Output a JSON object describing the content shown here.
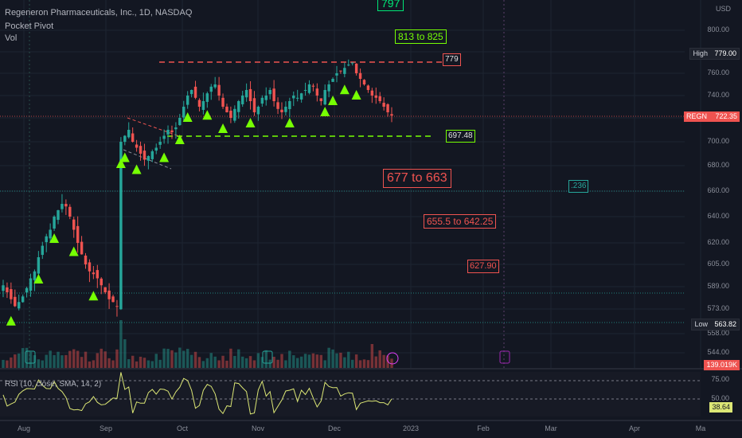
{
  "header": {
    "title": "Regeneron Pharmaceuticals, Inc., 1D, NASDAQ",
    "indicator1": "Pocket Pivot",
    "indicator2": "Vol"
  },
  "currency": "USD",
  "chart_data": {
    "type": "candlestick",
    "symbol": "REGN",
    "interval": "1D",
    "y_axis_ticks": [
      800,
      780,
      760,
      740,
      720,
      700,
      680,
      660,
      640,
      620,
      605,
      589,
      573,
      558,
      544
    ],
    "x_axis_labels": [
      "Aug",
      "Sep",
      "Oct",
      "Nov",
      "Dec",
      "2023",
      "Feb",
      "Mar",
      "Apr",
      "Ma"
    ],
    "last_price": "722.35",
    "high": {
      "label": "High",
      "value": "779.00"
    },
    "low": {
      "label": "Low",
      "value": "563.82"
    },
    "volume_label": "139.019K",
    "close_series": [
      590,
      585,
      580,
      575,
      578,
      582,
      588,
      595,
      600,
      610,
      618,
      625,
      630,
      640,
      645,
      650,
      648,
      640,
      630,
      620,
      612,
      605,
      600,
      598,
      595,
      590,
      585,
      580,
      578,
      575,
      700,
      705,
      710,
      700,
      695,
      690,
      685,
      688,
      692,
      695,
      700,
      705,
      710,
      708,
      712,
      720,
      730,
      740,
      745,
      738,
      730,
      735,
      742,
      748,
      750,
      740,
      730,
      725,
      720,
      728,
      735,
      740,
      745,
      735,
      725,
      730,
      738,
      740,
      745,
      735,
      728,
      725,
      730,
      735,
      740,
      738,
      742,
      745,
      750,
      748,
      740,
      735,
      745,
      750,
      755,
      760,
      762,
      765,
      768,
      770,
      760,
      755,
      750,
      745,
      740,
      738,
      735,
      730,
      725,
      722
    ],
    "annotations": [
      {
        "text": "797",
        "color": "#00e676",
        "border": "#00e676"
      },
      {
        "text": "813 to 825",
        "color": "#76ff03",
        "border": "#76ff03"
      },
      {
        "text": "779",
        "color": "#e0e0e0",
        "border": "#ef5350"
      },
      {
        "text": "697.48",
        "color": "#e0e0e0",
        "border": "#76ff03"
      },
      {
        "text": "677 to 663",
        "color": "#ef5350",
        "border": "#ef5350"
      },
      {
        "text": ".236",
        "color": "#26a69a",
        "border": "#26a69a"
      },
      {
        "text": "655.5 to 642.25",
        "color": "#ef5350",
        "border": "#ef5350"
      },
      {
        "text": "627.90",
        "color": "#ef5350",
        "border": "#ef5350"
      }
    ],
    "rsi": {
      "label": "RSI (10, close, SMA, 14, 2)",
      "value": "38.64",
      "ticks": [
        "75.00",
        "50.00"
      ]
    }
  },
  "colors": {
    "up": "#26a69a",
    "down": "#ef5350",
    "signal": "#76ff03",
    "background": "#131722"
  }
}
